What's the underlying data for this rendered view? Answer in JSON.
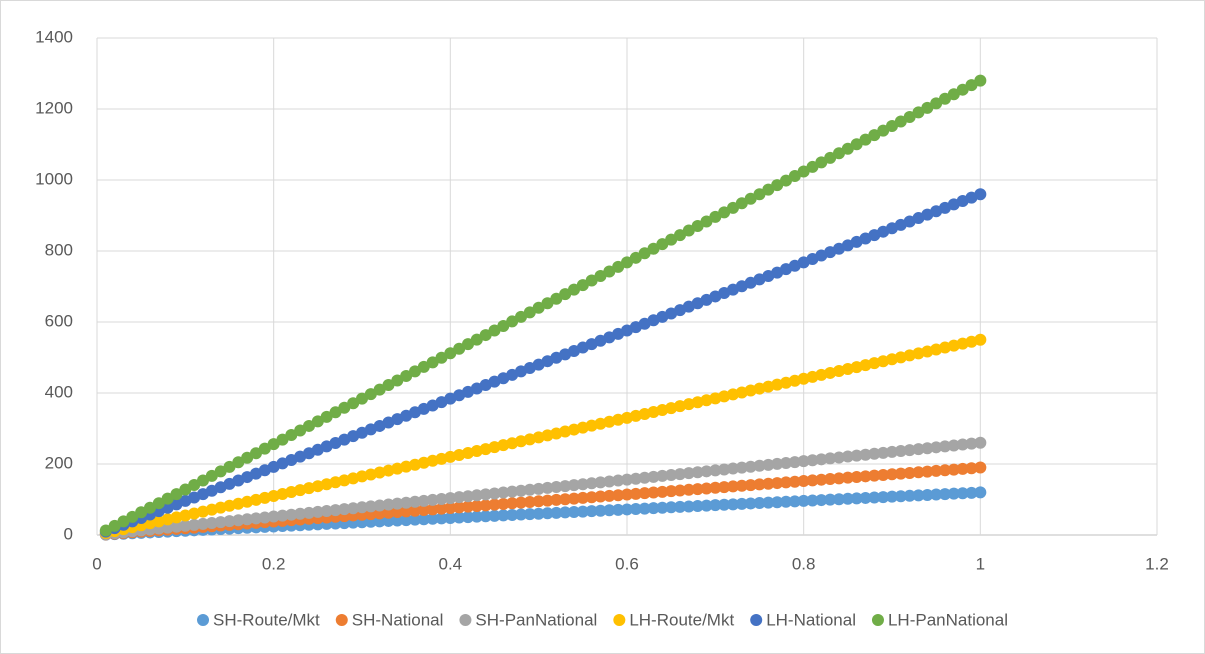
{
  "chart_data": {
    "type": "scatter",
    "x": [
      0.01,
      0.02,
      0.03,
      0.04,
      0.05,
      0.06,
      0.07,
      0.08,
      0.09,
      0.1,
      0.11,
      0.12,
      0.13,
      0.14,
      0.15,
      0.16,
      0.17,
      0.18,
      0.19,
      0.2,
      0.21,
      0.22,
      0.23,
      0.24,
      0.25,
      0.26,
      0.27,
      0.28,
      0.29,
      0.3,
      0.31,
      0.32,
      0.33,
      0.34,
      0.35,
      0.36,
      0.37,
      0.38,
      0.39,
      0.4,
      0.41,
      0.42,
      0.43,
      0.44,
      0.45,
      0.46,
      0.47,
      0.48,
      0.49,
      0.5,
      0.51,
      0.52,
      0.53,
      0.54,
      0.55,
      0.56,
      0.57,
      0.58,
      0.59,
      0.6,
      0.61,
      0.62,
      0.63,
      0.64,
      0.65,
      0.66,
      0.67,
      0.68,
      0.69,
      0.7,
      0.71,
      0.72,
      0.73,
      0.74,
      0.75,
      0.76,
      0.77,
      0.78,
      0.79,
      0.8,
      0.81,
      0.82,
      0.83,
      0.84,
      0.85,
      0.86,
      0.87,
      0.88,
      0.89,
      0.9,
      0.91,
      0.92,
      0.93,
      0.94,
      0.95,
      0.96,
      0.97,
      0.98,
      0.99,
      1
    ],
    "series": [
      {
        "name": "SH-Route/Mkt",
        "color": "#5B9BD5",
        "values": [
          1.2,
          2.4,
          3.6,
          4.8,
          6,
          7.2,
          8.4,
          9.6,
          10.8,
          12,
          13.2,
          14.4,
          15.6,
          16.8,
          18,
          19.2,
          20.4,
          21.6,
          22.8,
          24,
          25.2,
          26.4,
          27.6,
          28.8,
          30,
          31.2,
          32.4,
          33.6,
          34.8,
          36,
          37.2,
          38.4,
          39.6,
          40.8,
          42,
          43.2,
          44.4,
          45.6,
          46.8,
          48,
          49.2,
          50.4,
          51.6,
          52.8,
          54,
          55.2,
          56.4,
          57.6,
          58.8,
          60,
          61.2,
          62.4,
          63.6,
          64.8,
          66,
          67.2,
          68.4,
          69.6,
          70.8,
          72,
          73.2,
          74.4,
          75.6,
          76.8,
          78,
          79.2,
          80.4,
          81.6,
          82.8,
          84,
          85.2,
          86.4,
          87.6,
          88.8,
          90,
          91.2,
          92.4,
          93.6,
          94.8,
          96,
          97.2,
          98.4,
          99.6,
          100.8,
          102,
          103.2,
          104.4,
          105.6,
          106.8,
          108,
          109.2,
          110.4,
          111.6,
          112.8,
          114,
          115.2,
          116.4,
          117.6,
          118.8,
          120
        ]
      },
      {
        "name": "SH-National",
        "color": "#ED7D31",
        "values": [
          1.9,
          3.8,
          5.7,
          7.6,
          9.5,
          11.4,
          13.3,
          15.2,
          17.1,
          19,
          20.9,
          22.8,
          24.7,
          26.6,
          28.5,
          30.4,
          32.3,
          34.2,
          36.1,
          38,
          39.9,
          41.8,
          43.7,
          45.6,
          47.5,
          49.4,
          51.3,
          53.2,
          55.1,
          57,
          58.9,
          60.8,
          62.7,
          64.6,
          66.5,
          68.4,
          70.3,
          72.2,
          74.1,
          76,
          77.9,
          79.8,
          81.7,
          83.6,
          85.5,
          87.4,
          89.3,
          91.2,
          93.1,
          95,
          96.9,
          98.8,
          100.7,
          102.6,
          104.5,
          106.4,
          108.3,
          110.2,
          112.1,
          114,
          115.9,
          117.8,
          119.7,
          121.6,
          123.5,
          125.4,
          127.3,
          129.2,
          131.1,
          133,
          134.9,
          136.8,
          138.7,
          140.6,
          142.5,
          144.4,
          146.3,
          148.2,
          150.1,
          152,
          153.9,
          155.8,
          157.7,
          159.6,
          161.5,
          163.4,
          165.3,
          167.2,
          169.1,
          171,
          172.9,
          174.8,
          176.7,
          178.6,
          180.5,
          182.4,
          184.3,
          186.2,
          188.1,
          190
        ]
      },
      {
        "name": "SH-PanNational",
        "color": "#A5A5A5",
        "values": [
          2.6,
          5.2,
          7.8,
          10.4,
          13,
          15.6,
          18.2,
          20.8,
          23.4,
          26,
          28.6,
          31.2,
          33.8,
          36.4,
          39,
          41.6,
          44.2,
          46.8,
          49.4,
          52,
          54.6,
          57.2,
          59.8,
          62.4,
          65,
          67.6,
          70.2,
          72.8,
          75.4,
          78,
          80.6,
          83.2,
          85.8,
          88.4,
          91,
          93.6,
          96.2,
          98.8,
          101.4,
          104,
          106.6,
          109.2,
          111.8,
          114.4,
          117,
          119.6,
          122.2,
          124.8,
          127.4,
          130,
          132.6,
          135.2,
          137.8,
          140.4,
          143,
          145.6,
          148.2,
          150.8,
          153.4,
          156,
          158.6,
          161.2,
          163.8,
          166.4,
          169,
          171.6,
          174.2,
          176.8,
          179.4,
          182,
          184.6,
          187.2,
          189.8,
          192.4,
          195,
          197.6,
          200.2,
          202.8,
          205.4,
          208,
          210.6,
          213.2,
          215.8,
          218.4,
          221,
          223.6,
          226.2,
          228.8,
          231.4,
          234,
          236.6,
          239.2,
          241.8,
          244.4,
          247,
          249.6,
          252.2,
          254.8,
          257.4,
          260
        ]
      },
      {
        "name": "LH-Route/Mkt",
        "color": "#FFC000",
        "values": [
          5.5,
          11,
          16.5,
          22,
          27.5,
          33,
          38.5,
          44,
          49.5,
          55,
          60.5,
          66,
          71.5,
          77,
          82.5,
          88,
          93.5,
          99,
          104.5,
          110,
          115.5,
          121,
          126.5,
          132,
          137.5,
          143,
          148.5,
          154,
          159.5,
          165,
          170.5,
          176,
          181.5,
          187,
          192.5,
          198,
          203.5,
          209,
          214.5,
          220,
          225.5,
          231,
          236.5,
          242,
          247.5,
          253,
          258.5,
          264,
          269.5,
          275,
          280.5,
          286,
          291.5,
          297,
          302.5,
          308,
          313.5,
          319,
          324.5,
          330,
          335.5,
          341,
          346.5,
          352,
          357.5,
          363,
          368.5,
          374,
          379.5,
          385,
          390.5,
          396,
          401.5,
          407,
          412.5,
          418,
          423.5,
          429,
          434.5,
          440,
          445.5,
          451,
          456.5,
          462,
          467.5,
          473,
          478.5,
          484,
          489.5,
          495,
          500.5,
          506,
          511.5,
          517,
          522.5,
          528,
          533.5,
          539,
          544.5,
          550
        ]
      },
      {
        "name": "LH-National",
        "color": "#4472C4",
        "values": [
          9.6,
          19.2,
          28.8,
          38.4,
          48,
          57.6,
          67.2,
          76.8,
          86.4,
          96,
          105.6,
          115.2,
          124.8,
          134.4,
          144,
          153.6,
          163.2,
          172.8,
          182.4,
          192,
          201.6,
          211.2,
          220.8,
          230.4,
          240,
          249.6,
          259.2,
          268.8,
          278.4,
          288,
          297.6,
          307.2,
          316.8,
          326.4,
          336,
          345.6,
          355.2,
          364.8,
          374.4,
          384,
          393.6,
          403.2,
          412.8,
          422.4,
          432,
          441.6,
          451.2,
          460.8,
          470.4,
          480,
          489.6,
          499.2,
          508.8,
          518.4,
          528,
          537.6,
          547.2,
          556.8,
          566.4,
          576,
          585.6,
          595.2,
          604.8,
          614.4,
          624,
          633.6,
          643.2,
          652.8,
          662.4,
          672,
          681.6,
          691.2,
          700.8,
          710.4,
          720,
          729.6,
          739.2,
          748.8,
          758.4,
          768,
          777.6,
          787.2,
          796.8,
          806.4,
          816,
          825.6,
          835.2,
          844.8,
          854.4,
          864,
          873.6,
          883.2,
          892.8,
          902.4,
          912,
          921.6,
          931.2,
          940.8,
          950.4,
          960
        ]
      },
      {
        "name": "LH-PanNational",
        "color": "#70AD47",
        "values": [
          12.8,
          25.6,
          38.4,
          51.2,
          64,
          76.8,
          89.6,
          102.4,
          115.2,
          128,
          140.8,
          153.6,
          166.4,
          179.2,
          192,
          204.8,
          217.6,
          230.4,
          243.2,
          256,
          268.8,
          281.6,
          294.4,
          307.2,
          320,
          332.8,
          345.6,
          358.4,
          371.2,
          384,
          396.8,
          409.6,
          422.4,
          435.2,
          448,
          460.8,
          473.6,
          486.4,
          499.2,
          512,
          524.8,
          537.6,
          550.4,
          563.2,
          576,
          588.8,
          601.6,
          614.4,
          627.2,
          640,
          652.8,
          665.6,
          678.4,
          691.2,
          704,
          716.8,
          729.6,
          742.4,
          755.2,
          768,
          780.8,
          793.6,
          806.4,
          819.2,
          832,
          844.8,
          857.6,
          870.4,
          883.2,
          896,
          908.8,
          921.6,
          934.4,
          947.2,
          960,
          972.8,
          985.6,
          998.4,
          1011.2,
          1024,
          1036.8,
          1049.6,
          1062.4,
          1075.2,
          1088,
          1100.8,
          1113.6,
          1126.4,
          1139.2,
          1152,
          1164.8,
          1177.6,
          1190.4,
          1203.2,
          1216,
          1228.8,
          1241.6,
          1254.4,
          1267.2,
          1280
        ]
      }
    ],
    "xlim": [
      0,
      1.2
    ],
    "xticks": [
      0,
      0.2,
      0.4,
      0.6,
      0.8,
      1,
      1.2
    ],
    "ylim": [
      0,
      1400
    ],
    "yticks": [
      0,
      200,
      400,
      600,
      800,
      1000,
      1200,
      1400
    ],
    "grid": true,
    "legend": "bottom"
  }
}
